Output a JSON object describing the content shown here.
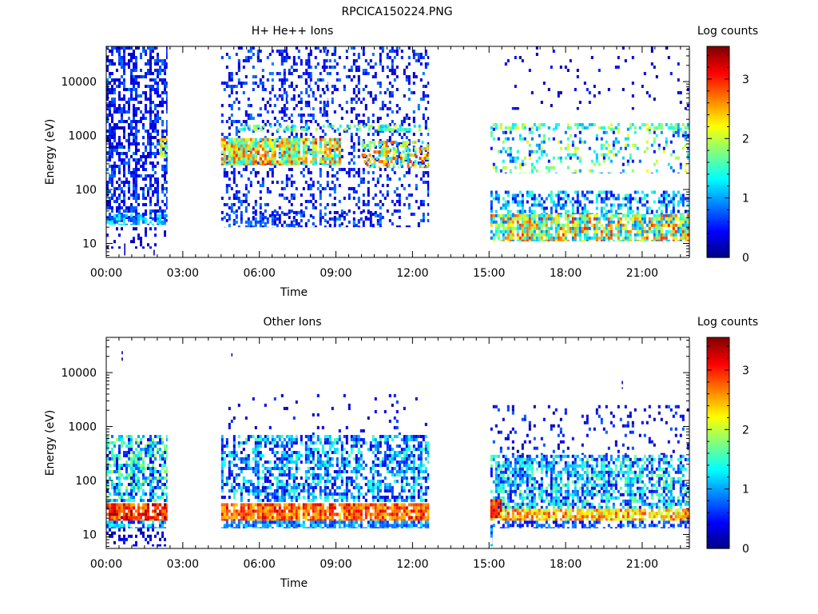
{
  "figure_title": "RPCICA150224.PNG",
  "chart_data": [
    {
      "type": "heatmap",
      "title": "H+ He++ Ions",
      "xlabel": "Time",
      "ylabel": "Energy (eV)",
      "x_ticks": [
        "00:00",
        "03:00",
        "06:00",
        "09:00",
        "12:00",
        "15:00",
        "18:00",
        "21:00"
      ],
      "x_tick_hours": [
        0,
        3,
        6,
        9,
        12,
        15,
        18,
        21
      ],
      "xlim_hours": [
        0,
        22.85
      ],
      "y_scale": "log",
      "y_ticks": [
        "10",
        "100",
        "1000",
        "10000"
      ],
      "y_tick_values": [
        10,
        100,
        1000,
        10000
      ],
      "ylim": [
        5.5,
        45000
      ],
      "colorbar": {
        "label": "Log counts",
        "ticks": [
          "0",
          "1",
          "2",
          "3"
        ],
        "tick_values": [
          0,
          1,
          2,
          3
        ],
        "range": [
          0,
          3.55
        ]
      },
      "data_gaps_hours": [
        [
          2.4,
          4.5
        ],
        [
          12.65,
          15.05
        ]
      ],
      "bands": [
        {
          "t": [
            0.0,
            2.4
          ],
          "e": [
            25,
            45000
          ],
          "density": 0.55,
          "level": [
            0.15,
            0.9
          ]
        },
        {
          "t": [
            0.0,
            2.4
          ],
          "e": [
            22,
            35
          ],
          "density": 0.7,
          "level": [
            0.6,
            1.5
          ]
        },
        {
          "t": [
            0.0,
            2.4
          ],
          "e": [
            8,
            20
          ],
          "density": 0.12,
          "level": [
            0.1,
            0.5
          ]
        },
        {
          "t": [
            2.1,
            2.4
          ],
          "e": [
            400,
            900
          ],
          "density": 0.8,
          "level": [
            1.5,
            2.5
          ]
        },
        {
          "t": [
            4.5,
            12.65
          ],
          "e": [
            20,
            45000
          ],
          "density": 0.25,
          "level": [
            0.15,
            0.9
          ]
        },
        {
          "t": [
            4.5,
            9.2
          ],
          "e": [
            280,
            900
          ],
          "density": 0.85,
          "level": [
            1.2,
            3.0
          ]
        },
        {
          "t": [
            10.0,
            12.65
          ],
          "e": [
            250,
            800
          ],
          "density": 0.6,
          "level": [
            1.0,
            3.0
          ]
        },
        {
          "t": [
            5.0,
            12.65
          ],
          "e": [
            1200,
            1600
          ],
          "density": 0.45,
          "level": [
            1.0,
            2.2
          ]
        },
        {
          "t": [
            4.5,
            10.8
          ],
          "e": [
            20,
            40
          ],
          "density": 0.35,
          "level": [
            0.2,
            1.0
          ]
        },
        {
          "t": [
            15.05,
            22.85
          ],
          "e": [
            11,
            35
          ],
          "density": 0.8,
          "level": [
            0.8,
            3.0
          ]
        },
        {
          "t": [
            15.05,
            22.85
          ],
          "e": [
            35,
            95
          ],
          "density": 0.45,
          "level": [
            0.3,
            1.6
          ]
        },
        {
          "t": [
            15.05,
            22.85
          ],
          "e": [
            200,
            1400
          ],
          "density": 0.22,
          "level": [
            0.3,
            2.3
          ]
        },
        {
          "t": [
            15.05,
            22.85
          ],
          "e": [
            1300,
            1700
          ],
          "density": 0.5,
          "level": [
            1.0,
            2.3
          ]
        },
        {
          "t": [
            15.05,
            22.85
          ],
          "e": [
            3000,
            45000
          ],
          "density": 0.04,
          "level": [
            0.1,
            0.6
          ]
        }
      ],
      "columns": [
        {
          "t": [
            6.85,
            7.1
          ],
          "e": [
            1800,
            45000
          ],
          "density": 0.5,
          "level": [
            0.2,
            0.8
          ]
        },
        {
          "t": [
            7.8,
            8.0
          ],
          "e": [
            1800,
            45000
          ],
          "density": 0.5,
          "level": [
            0.2,
            0.8
          ]
        },
        {
          "t": [
            8.5,
            8.7
          ],
          "e": [
            1800,
            45000
          ],
          "density": 0.5,
          "level": [
            0.2,
            0.8
          ]
        },
        {
          "t": [
            0.7,
            0.75
          ],
          "e": [
            6,
            10
          ],
          "density": 0.9,
          "level": [
            0.1,
            0.3
          ]
        },
        {
          "t": [
            1.85,
            1.9
          ],
          "e": [
            6,
            10
          ],
          "density": 0.9,
          "level": [
            0.1,
            0.3
          ]
        }
      ]
    },
    {
      "type": "heatmap",
      "title": "Other Ions",
      "xlabel": "Time",
      "ylabel": "Energy (eV)",
      "x_ticks": [
        "00:00",
        "03:00",
        "06:00",
        "09:00",
        "12:00",
        "15:00",
        "18:00",
        "21:00"
      ],
      "x_tick_hours": [
        0,
        3,
        6,
        9,
        12,
        15,
        18,
        21
      ],
      "xlim_hours": [
        0,
        22.85
      ],
      "y_scale": "log",
      "y_ticks": [
        "10",
        "100",
        "1000",
        "10000"
      ],
      "y_tick_values": [
        10,
        100,
        1000,
        10000
      ],
      "ylim": [
        5.5,
        45000
      ],
      "colorbar": {
        "label": "Log counts",
        "ticks": [
          "0",
          "1",
          "2",
          "3"
        ],
        "tick_values": [
          0,
          1,
          2,
          3
        ],
        "range": [
          0,
          3.55
        ]
      },
      "data_gaps_hours": [
        [
          2.4,
          4.5
        ],
        [
          12.65,
          15.05
        ]
      ],
      "bands": [
        {
          "t": [
            0.0,
            2.4
          ],
          "e": [
            40,
            700
          ],
          "density": 0.6,
          "level": [
            0.3,
            2.0
          ]
        },
        {
          "t": [
            0.0,
            2.4
          ],
          "e": [
            18,
            38
          ],
          "density": 1.0,
          "level": [
            2.5,
            3.5
          ]
        },
        {
          "t": [
            0.0,
            2.4
          ],
          "e": [
            13,
            18
          ],
          "density": 0.75,
          "level": [
            0.5,
            1.5
          ]
        },
        {
          "t": [
            0.0,
            2.4
          ],
          "e": [
            6,
            13
          ],
          "density": 0.25,
          "level": [
            0.1,
            0.5
          ]
        },
        {
          "t": [
            4.5,
            12.65
          ],
          "e": [
            40,
            700
          ],
          "density": 0.55,
          "level": [
            0.2,
            1.6
          ]
        },
        {
          "t": [
            4.5,
            12.65
          ],
          "e": [
            18,
            38
          ],
          "density": 1.0,
          "level": [
            2.3,
            3.3
          ]
        },
        {
          "t": [
            4.5,
            12.65
          ],
          "e": [
            13,
            18
          ],
          "density": 0.8,
          "level": [
            0.5,
            1.3
          ]
        },
        {
          "t": [
            4.5,
            12.65
          ],
          "e": [
            700,
            4000
          ],
          "density": 0.04,
          "level": [
            0.1,
            0.7
          ]
        },
        {
          "t": [
            15.05,
            22.85
          ],
          "e": [
            18,
            30
          ],
          "density": 0.85,
          "level": [
            1.8,
            3.0
          ]
        },
        {
          "t": [
            15.05,
            22.85
          ],
          "e": [
            30,
            300
          ],
          "density": 0.6,
          "level": [
            0.3,
            1.8
          ]
        },
        {
          "t": [
            15.05,
            22.85
          ],
          "e": [
            300,
            2500
          ],
          "density": 0.12,
          "level": [
            0.1,
            0.8
          ]
        },
        {
          "t": [
            15.05,
            15.5
          ],
          "e": [
            20,
            45
          ],
          "density": 1.0,
          "level": [
            2.6,
            3.5
          ]
        },
        {
          "t": [
            15.05,
            22.85
          ],
          "e": [
            13,
            18
          ],
          "density": 0.5,
          "level": [
            0.3,
            1.0
          ]
        }
      ],
      "columns": [
        {
          "t": [
            0.6,
            0.65
          ],
          "e": [
            15000,
            25000
          ],
          "density": 0.5,
          "level": [
            0.1,
            0.3
          ]
        },
        {
          "t": [
            4.9,
            4.95
          ],
          "e": [
            20000,
            30000
          ],
          "density": 0.5,
          "level": [
            0.1,
            0.3
          ]
        },
        {
          "t": [
            15.05,
            15.15
          ],
          "e": [
            6,
            15
          ],
          "density": 1.0,
          "level": [
            0.5,
            1.5
          ]
        },
        {
          "t": [
            20.2,
            20.25
          ],
          "e": [
            5000,
            7000
          ],
          "density": 0.8,
          "level": [
            0.1,
            0.3
          ]
        }
      ]
    }
  ]
}
